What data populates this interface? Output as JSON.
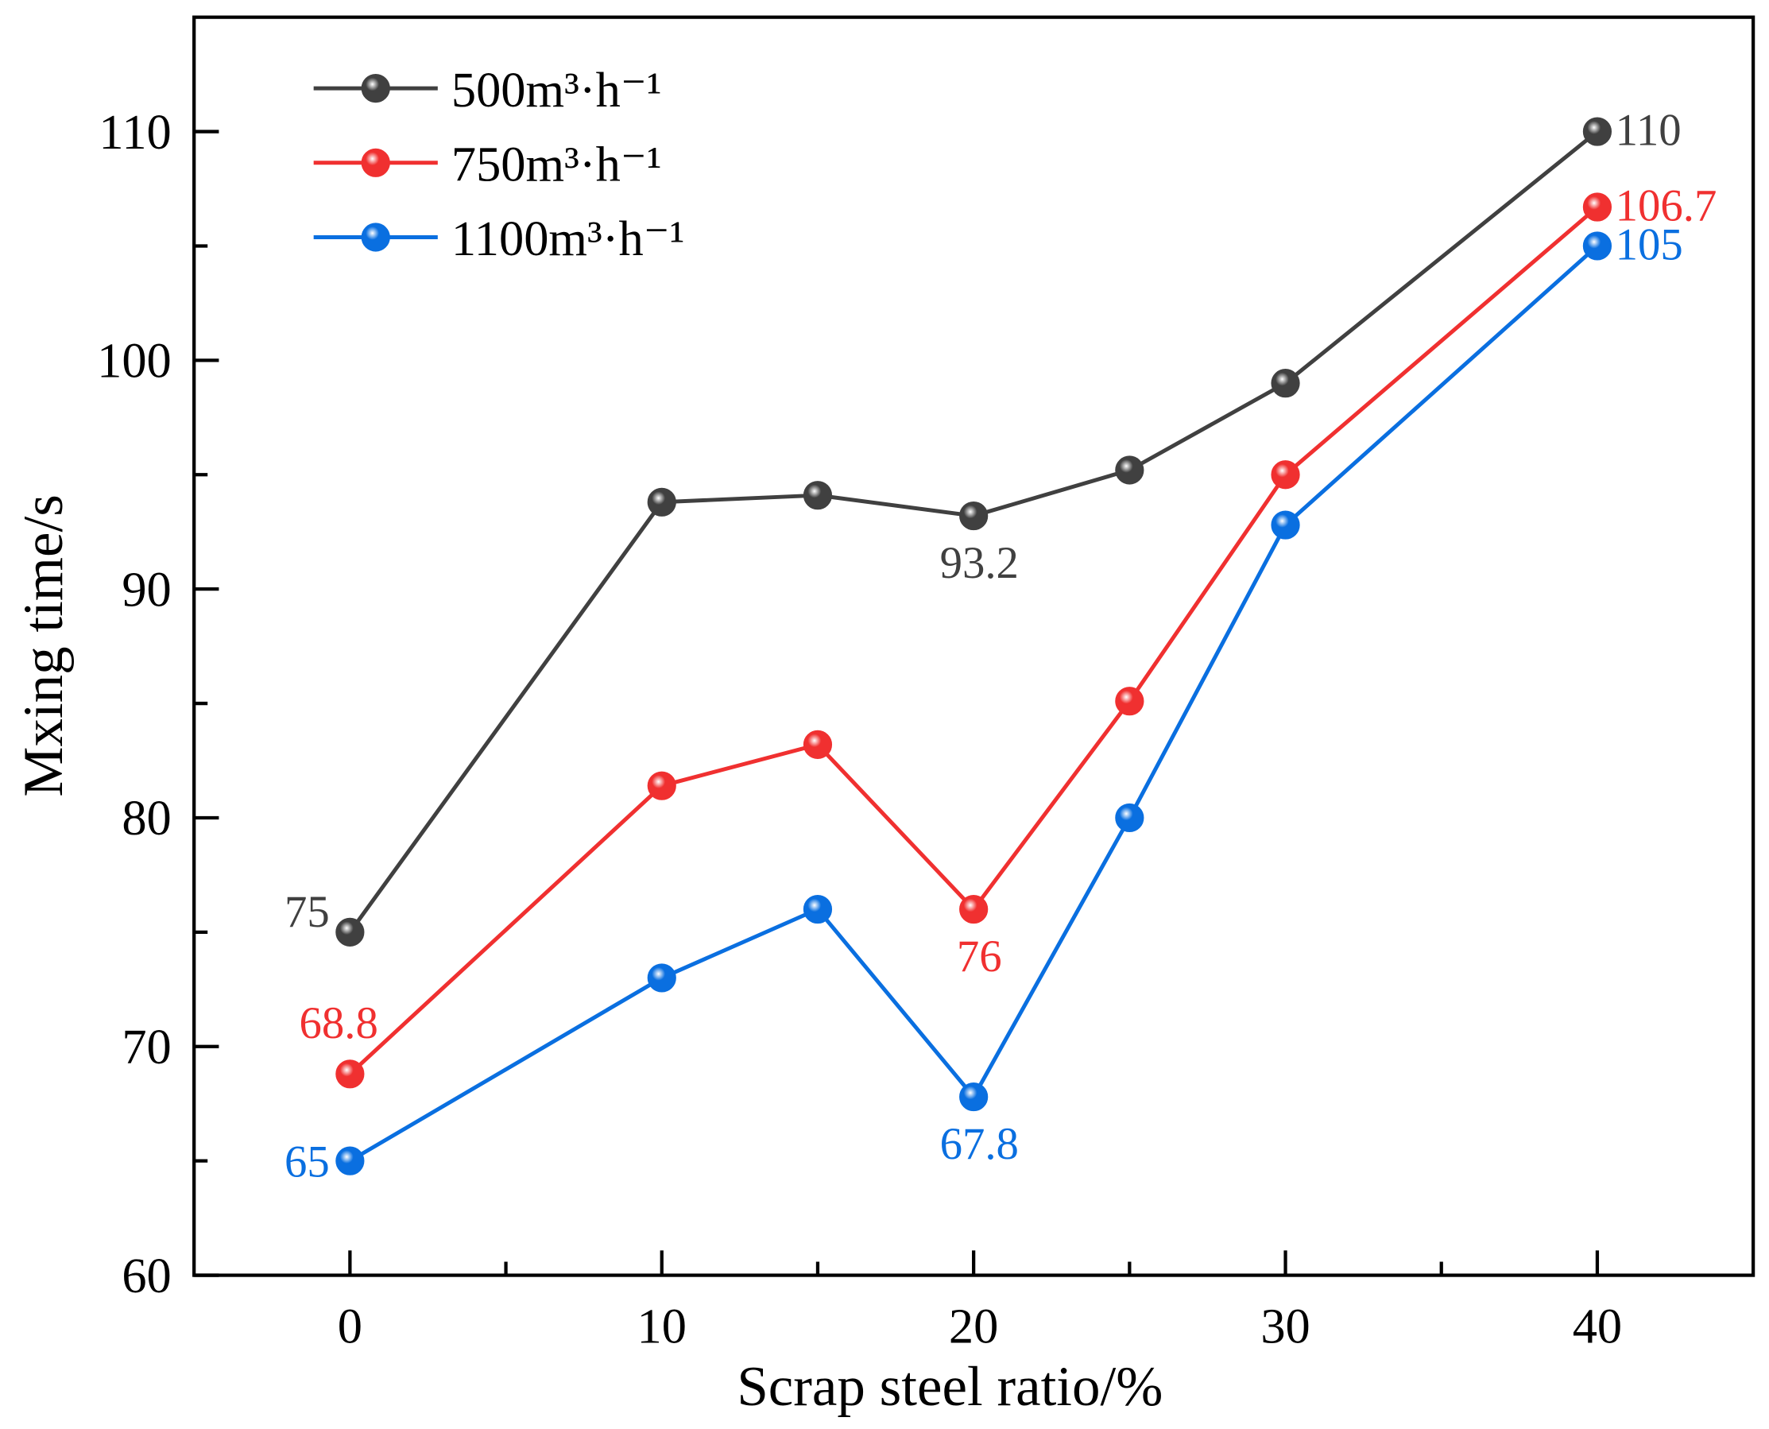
{
  "chart_data": {
    "type": "line",
    "title": "",
    "xlabel": "Scrap steel ratio/%",
    "ylabel": "Mxing time/s",
    "xlim": [
      -5,
      45
    ],
    "ylim": [
      60,
      115
    ],
    "xticks": [
      0,
      10,
      20,
      30,
      40
    ],
    "yticks": [
      60,
      70,
      80,
      90,
      100,
      110
    ],
    "grid": false,
    "legend_position": "top-left",
    "x": [
      0,
      10,
      15,
      20,
      25,
      30,
      40
    ],
    "series": [
      {
        "name": "500m³·h⁻¹",
        "color": "#404040",
        "values": [
          75,
          93.8,
          94.1,
          93.2,
          95.2,
          99.0,
          110
        ],
        "labels": [
          {
            "index": 0,
            "text": "75",
            "pos": "left"
          },
          {
            "index": 3,
            "text": "93.2",
            "pos": "below"
          },
          {
            "index": 6,
            "text": "110",
            "pos": "right"
          }
        ]
      },
      {
        "name": "750m³·h⁻¹",
        "color": "#f03030",
        "values": [
          68.8,
          81.4,
          83.2,
          76,
          85.1,
          95.0,
          106.7
        ],
        "labels": [
          {
            "index": 0,
            "text": "68.8",
            "pos": "above"
          },
          {
            "index": 3,
            "text": "76",
            "pos": "below"
          },
          {
            "index": 6,
            "text": "106.7",
            "pos": "right"
          }
        ]
      },
      {
        "name": "1100m³·h⁻¹",
        "color": "#0a6fe0",
        "values": [
          65,
          73.0,
          76.0,
          67.8,
          80.0,
          92.8,
          105
        ],
        "labels": [
          {
            "index": 0,
            "text": "65",
            "pos": "left"
          },
          {
            "index": 3,
            "text": "67.8",
            "pos": "below"
          },
          {
            "index": 6,
            "text": "105",
            "pos": "right"
          }
        ]
      }
    ]
  }
}
